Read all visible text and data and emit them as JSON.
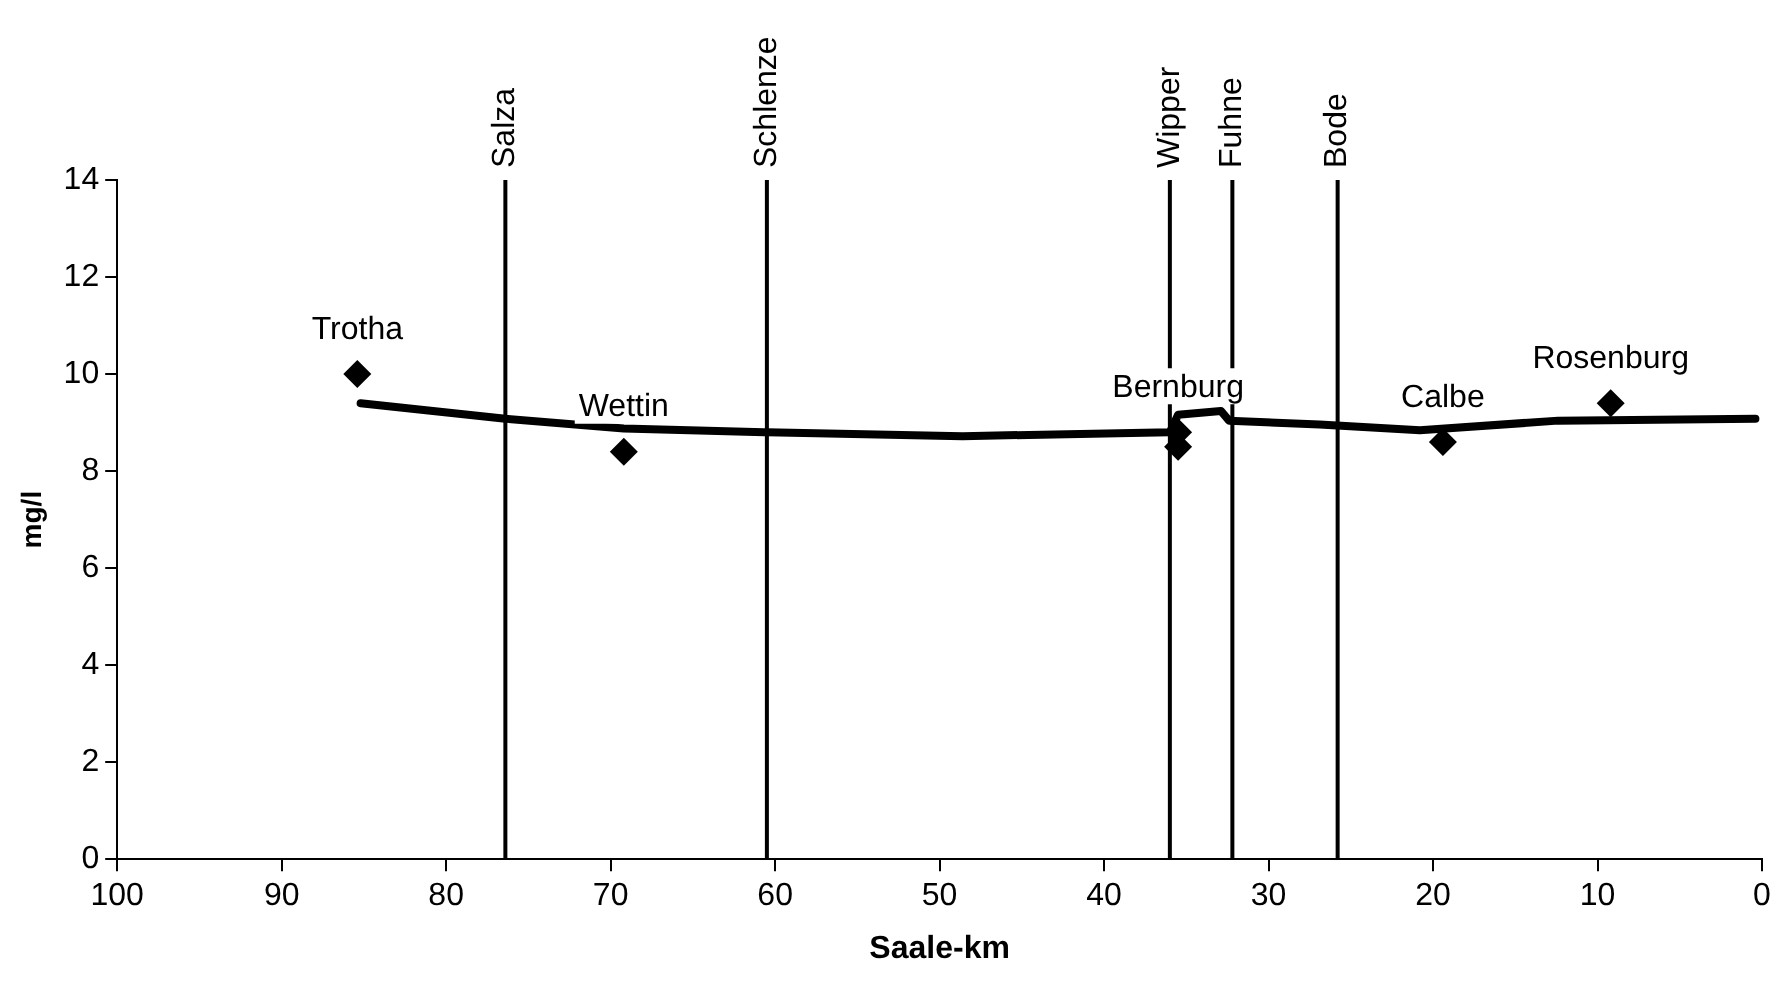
{
  "chart_data": {
    "type": "scatter",
    "xlabel": "Saale-km",
    "ylabel": "mg/l",
    "xlim": [
      100,
      0
    ],
    "xticks": [
      100,
      90,
      80,
      70,
      60,
      50,
      40,
      30,
      20,
      10,
      0
    ],
    "ylim": [
      0,
      14
    ],
    "yticks": [
      0,
      2,
      4,
      6,
      8,
      10,
      12,
      14
    ],
    "grid": false,
    "legend": false,
    "series": [
      {
        "type": "line",
        "color": "#000000",
        "marker": "none",
        "line_style": "solid",
        "x": [
          85.2,
          76.4,
          69.2,
          60.5,
          48.6,
          36.0,
          35.5,
          32.9,
          32.4,
          26.9,
          20.8,
          12.4,
          0.4
        ],
        "values": [
          9.4,
          9.08,
          8.88,
          8.8,
          8.72,
          8.8,
          9.16,
          9.24,
          9.04,
          8.96,
          8.84,
          9.04,
          9.08
        ]
      },
      {
        "color": "#000000",
        "marker": "diamond",
        "x": [
          85.4,
          69.2,
          35.5,
          35.5,
          19.4,
          9.2
        ],
        "values": [
          10.0,
          8.4,
          8.5,
          8.8,
          8.6,
          9.4
        ]
      }
    ],
    "ref_lines": [
      {
        "axis": "x",
        "value": 76.4,
        "label": "Salza"
      },
      {
        "axis": "x",
        "value": 60.5,
        "label": "Schlenze"
      },
      {
        "axis": "x",
        "value": 36.0,
        "label": "Wipper"
      },
      {
        "axis": "x",
        "value": 32.2,
        "label": "Fuhne"
      },
      {
        "axis": "x",
        "value": 25.8,
        "label": "Bode"
      }
    ],
    "annotations": [
      {
        "text": "Trotha",
        "x": 85.4,
        "y": 10.0
      },
      {
        "text": "Wettin",
        "x": 69.2,
        "y": 8.4
      },
      {
        "text": "Bernburg",
        "x": 35.5,
        "y": 8.8
      },
      {
        "text": "Calbe",
        "x": 19.4,
        "y": 8.6
      },
      {
        "text": "Rosenburg",
        "x": 9.2,
        "y": 9.4
      }
    ]
  }
}
